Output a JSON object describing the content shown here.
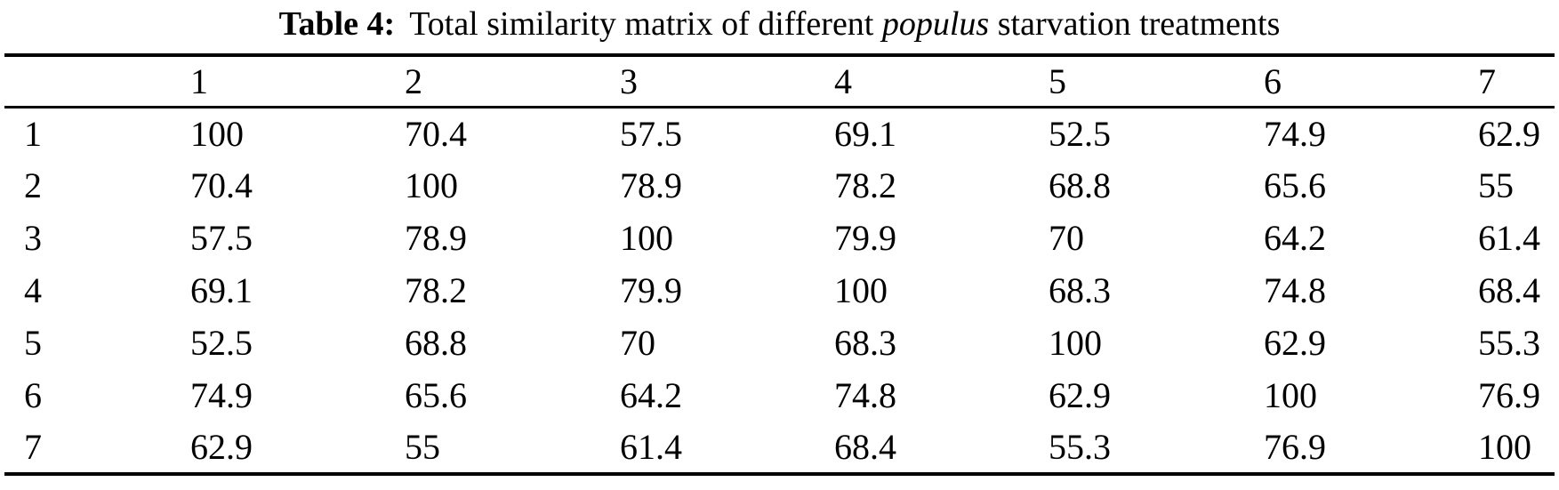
{
  "caption": {
    "label": "Table 4:",
    "text_before_italic": "Total similarity matrix of different ",
    "italic_word": "populus",
    "text_after_italic": " starvation treatments"
  },
  "table": {
    "corner_label": "",
    "columns": [
      "1",
      "2",
      "3",
      "4",
      "5",
      "6",
      "7"
    ],
    "rows": [
      {
        "label": "1",
        "values": [
          "100",
          "70.4",
          "57.5",
          "69.1",
          "52.5",
          "74.9",
          "62.9"
        ]
      },
      {
        "label": "2",
        "values": [
          "70.4",
          "100",
          "78.9",
          "78.2",
          "68.8",
          "65.6",
          "55"
        ]
      },
      {
        "label": "3",
        "values": [
          "57.5",
          "78.9",
          "100",
          "79.9",
          "70",
          "64.2",
          "61.4"
        ]
      },
      {
        "label": "4",
        "values": [
          "69.1",
          "78.2",
          "79.9",
          "100",
          "68.3",
          "74.8",
          "68.4"
        ]
      },
      {
        "label": "5",
        "values": [
          "52.5",
          "68.8",
          "70",
          "68.3",
          "100",
          "62.9",
          "55.3"
        ]
      },
      {
        "label": "6",
        "values": [
          "74.9",
          "65.6",
          "64.2",
          "74.8",
          "62.9",
          "100",
          "76.9"
        ]
      },
      {
        "label": "7",
        "values": [
          "62.9",
          "55",
          "61.4",
          "68.4",
          "55.3",
          "76.9",
          "100"
        ]
      }
    ]
  },
  "colors": {
    "text": "#000000",
    "background": "#ffffff",
    "rule": "#000000"
  }
}
